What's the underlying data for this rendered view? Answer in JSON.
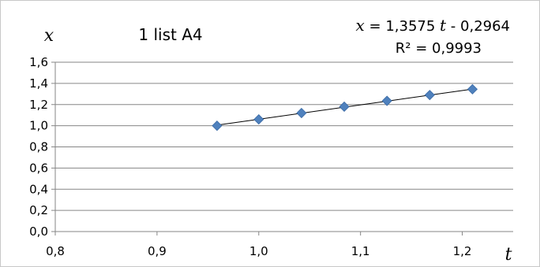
{
  "chart_data": {
    "type": "scatter",
    "title": "1 list A4",
    "xlabel": "t",
    "ylabel": "x",
    "xlim": [
      0.8,
      1.25
    ],
    "ylim": [
      0.0,
      1.6
    ],
    "x_ticks": [
      "0,8",
      "0,9",
      "1,0",
      "1,1",
      "1,2"
    ],
    "y_ticks": [
      "0,0",
      "0,2",
      "0,4",
      "0,6",
      "0,8",
      "1,0",
      "1,2",
      "1,4",
      "1,6"
    ],
    "grid": "horizontal",
    "marker": "diamond",
    "marker_color": "#4f81bd",
    "series": [
      {
        "x": [
          0.959,
          1.0,
          1.042,
          1.084,
          1.126,
          1.168,
          1.21
        ],
        "y": [
          1.0,
          1.06,
          1.12,
          1.18,
          1.235,
          1.29,
          1.345
        ]
      }
    ],
    "trendline": {
      "type": "linear",
      "slope": 1.3575,
      "intercept": -0.2964,
      "equation_parts": {
        "lhs": "x",
        "eq_coef": " = 1,3575 ",
        "var": "t",
        "eq_const": " - 0,2964"
      },
      "r_squared": "R² = 0,9993"
    }
  }
}
